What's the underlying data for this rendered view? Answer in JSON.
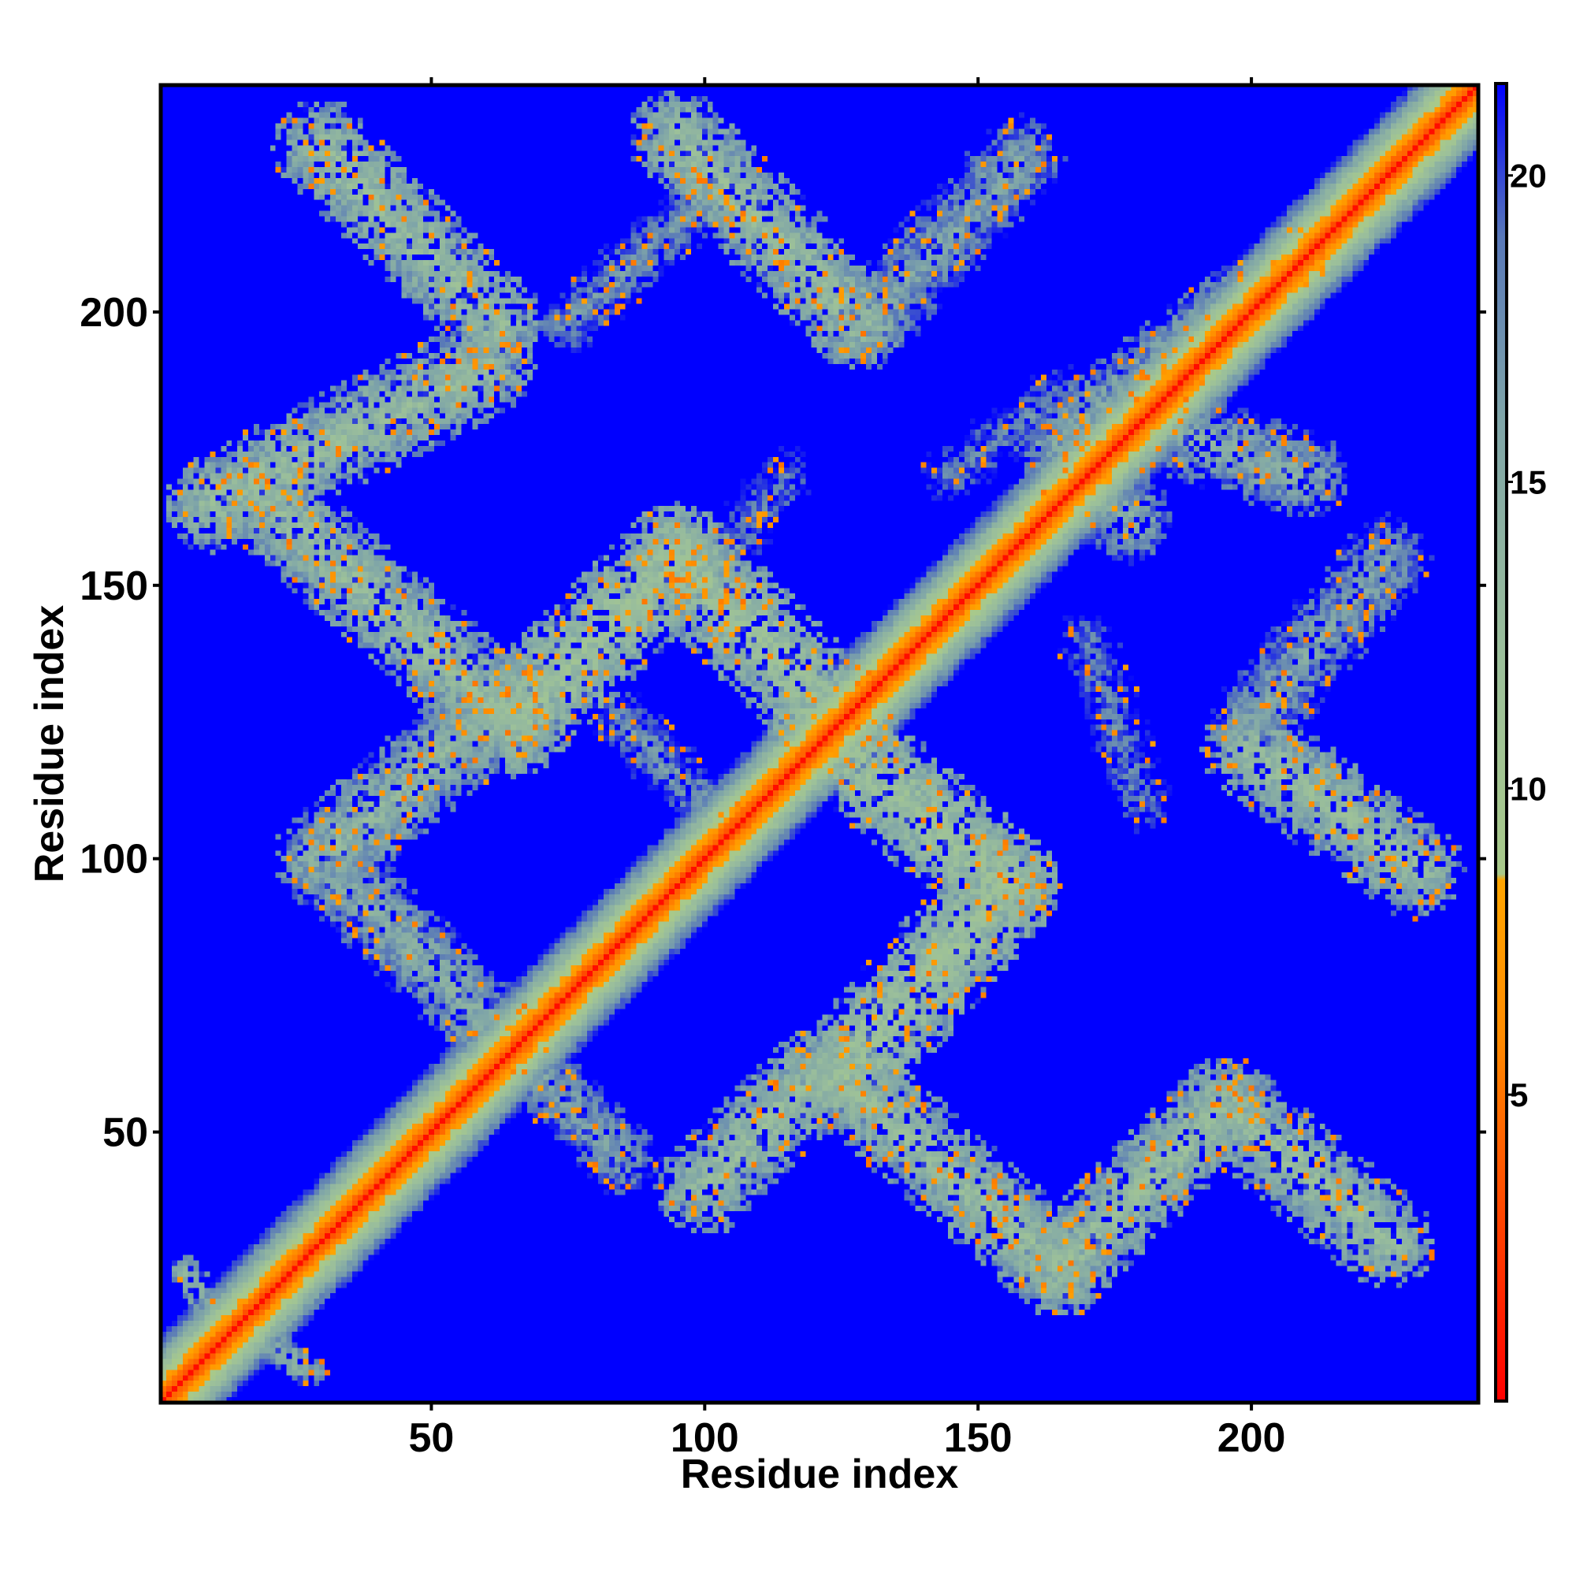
{
  "chart_data": {
    "type": "heatmap",
    "title": "",
    "xlabel": "Residue index",
    "ylabel": "Residue index",
    "n_residues": 241,
    "xlim": [
      1,
      241
    ],
    "ylim": [
      1,
      241
    ],
    "x_ticks": [
      50,
      100,
      150,
      200
    ],
    "y_ticks": [
      50,
      100,
      150,
      200
    ],
    "colorbar": {
      "ticks": [
        5,
        10,
        15,
        20
      ],
      "range": [
        0,
        21.5
      ],
      "colors": [
        {
          "value": 0,
          "color": "#ff0000"
        },
        {
          "value": 3,
          "color": "#ff4500"
        },
        {
          "value": 6,
          "color": "#ff8c00"
        },
        {
          "value": 8.5,
          "color": "#ffa500"
        },
        {
          "value": 8.6,
          "color": "#a8c98a"
        },
        {
          "value": 12,
          "color": "#9cc09a"
        },
        {
          "value": 16,
          "color": "#7fa5a8"
        },
        {
          "value": 19,
          "color": "#5878b8"
        },
        {
          "value": 21.5,
          "color": "#0000ff"
        }
      ]
    },
    "background_color": "#0000ff",
    "description_values": {
      "diagonal_distance": 3.8,
      "contact_cutoff": 21.5
    },
    "contact_segments": [
      {
        "from": [
          30,
          230
        ],
        "to": [
          62,
          198
        ],
        "width": 9,
        "value": 13
      },
      {
        "from": [
          95,
          232
        ],
        "to": [
          128,
          198
        ],
        "width": 9,
        "value": 13
      },
      {
        "from": [
          130,
          198
        ],
        "to": [
          158,
          228
        ],
        "width": 8,
        "value": 16
      },
      {
        "from": [
          75,
          198
        ],
        "to": [
          100,
          220
        ],
        "width": 6,
        "value": 17
      },
      {
        "from": [
          10,
          165
        ],
        "to": [
          60,
          190
        ],
        "width": 9,
        "value": 13
      },
      {
        "from": [
          20,
          165
        ],
        "to": [
          65,
          125
        ],
        "width": 9,
        "value": 13
      },
      {
        "from": [
          65,
          125
        ],
        "to": [
          95,
          155
        ],
        "width": 10,
        "value": 12
      },
      {
        "from": [
          95,
          155
        ],
        "to": [
          125,
          125
        ],
        "width": 10,
        "value": 12
      },
      {
        "from": [
          30,
          100
        ],
        "to": [
          65,
          130
        ],
        "width": 9,
        "value": 14
      },
      {
        "from": [
          35,
          95
        ],
        "to": [
          65,
          65
        ],
        "width": 8,
        "value": 15
      },
      {
        "from": [
          85,
          125
        ],
        "to": [
          100,
          110
        ],
        "width": 6,
        "value": 17
      },
      {
        "from": [
          120,
          125
        ],
        "to": [
          155,
          95
        ],
        "width": 10,
        "value": 12
      },
      {
        "from": [
          155,
          95
        ],
        "to": [
          125,
          60
        ],
        "width": 10,
        "value": 12
      },
      {
        "from": [
          120,
          60
        ],
        "to": [
          100,
          40
        ],
        "width": 9,
        "value": 13
      },
      {
        "from": [
          125,
          60
        ],
        "to": [
          165,
          25
        ],
        "width": 9,
        "value": 13
      },
      {
        "from": [
          165,
          25
        ],
        "to": [
          195,
          55
        ],
        "width": 9,
        "value": 13
      },
      {
        "from": [
          195,
          55
        ],
        "to": [
          225,
          30
        ],
        "width": 9,
        "value": 13
      },
      {
        "from": [
          70,
          60
        ],
        "to": [
          85,
          45
        ],
        "width": 7,
        "value": 16
      },
      {
        "from": [
          165,
          175
        ],
        "to": [
          178,
          162
        ],
        "width": 8,
        "value": 15
      },
      {
        "from": [
          180,
          180
        ],
        "to": [
          210,
          170
        ],
        "width": 8,
        "value": 15
      },
      {
        "from": [
          170,
          180
        ],
        "to": [
          210,
          210
        ],
        "width": 8,
        "value": 15
      },
      {
        "from": [
          200,
          120
        ],
        "to": [
          230,
          98
        ],
        "width": 9,
        "value": 13
      },
      {
        "from": [
          200,
          125
        ],
        "to": [
          225,
          155
        ],
        "width": 8,
        "value": 16
      },
      {
        "from": [
          170,
          140
        ],
        "to": [
          180,
          110
        ],
        "width": 6,
        "value": 18
      },
      {
        "from": [
          100,
          150
        ],
        "to": [
          115,
          170
        ],
        "width": 6,
        "value": 18
      },
      {
        "from": [
          145,
          170
        ],
        "to": [
          165,
          185
        ],
        "width": 6,
        "value": 18
      },
      {
        "from": [
          5,
          25
        ],
        "to": [
          8,
          20
        ],
        "width": 3,
        "value": 14
      },
      {
        "from": [
          22,
          10
        ],
        "to": [
          28,
          6
        ],
        "width": 3,
        "value": 14
      }
    ]
  }
}
